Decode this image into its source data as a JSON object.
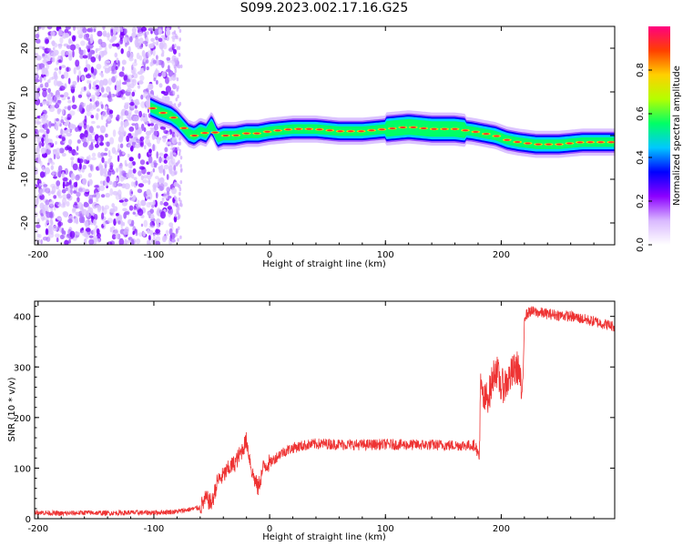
{
  "title": "S099.2023.002.17.16.G25",
  "chart_data": [
    {
      "type": "heatmap",
      "title": "S099.2023.002.17.16.G25",
      "xlabel": "Height of straight line (km)",
      "ylabel": "Frequency (Hz)",
      "xlim": [
        -203,
        298
      ],
      "ylim": [
        -25,
        25
      ],
      "xticks": [
        -200,
        -100,
        0,
        100,
        200
      ],
      "yticks": [
        -20,
        -10,
        0,
        10,
        20
      ],
      "colorbar": {
        "label": "Normalized spectral amplitude",
        "range": [
          0,
          1
        ],
        "ticks": [
          "0.0",
          "0.2",
          "0.4",
          "0.6",
          "0.8"
        ],
        "colormap": [
          "#ffffff",
          "#d9b8ff",
          "#8c00ff",
          "#0000ff",
          "#00c8ff",
          "#00ff66",
          "#b4ff00",
          "#ffd000",
          "#ff4000",
          "#ff0080"
        ]
      },
      "noise_region_km": [
        -203,
        -80
      ],
      "ridge": {
        "x": [
          -103,
          -95,
          -85,
          -80,
          -75,
          -70,
          -65,
          -60,
          -55,
          -50,
          -45,
          -40,
          -30,
          -20,
          -10,
          0,
          20,
          40,
          60,
          80,
          100,
          120,
          140,
          160,
          175,
          185,
          195,
          205,
          215,
          230,
          250,
          270,
          298
        ],
        "y": [
          6.5,
          5.5,
          4.5,
          3.5,
          2.0,
          0.5,
          0,
          1.0,
          0.5,
          2.5,
          -0.5,
          0,
          0,
          0.5,
          0.5,
          1.0,
          1.5,
          1.5,
          1.0,
          1.0,
          1.5,
          2.0,
          1.5,
          1.5,
          1.0,
          0.5,
          0,
          -1.0,
          -1.5,
          -2.0,
          -2.0,
          -1.5,
          -1.5
        ]
      }
    },
    {
      "type": "line",
      "xlabel": "Height of straight line (km)",
      "ylabel": "SNR (10 * v/v)",
      "xlim": [
        -203,
        298
      ],
      "ylim": [
        0,
        430
      ],
      "xticks": [
        -200,
        -100,
        0,
        100,
        200
      ],
      "yticks": [
        0,
        100,
        200,
        300,
        400
      ],
      "color": "#ee3333",
      "x": [
        -203,
        -180,
        -160,
        -140,
        -120,
        -100,
        -80,
        -70,
        -60,
        -55,
        -50,
        -45,
        -40,
        -35,
        -30,
        -25,
        -20,
        -15,
        -10,
        -5,
        0,
        5,
        10,
        20,
        30,
        40,
        50,
        60,
        80,
        100,
        120,
        140,
        160,
        178,
        181,
        182,
        185,
        190,
        195,
        200,
        205,
        210,
        215,
        218,
        219,
        220,
        225,
        240,
        260,
        280,
        298
      ],
      "values": [
        13,
        10,
        12,
        11,
        12,
        12,
        14,
        18,
        22,
        40,
        30,
        75,
        85,
        100,
        110,
        130,
        155,
        90,
        60,
        105,
        110,
        120,
        130,
        140,
        145,
        148,
        148,
        147,
        146,
        147,
        146,
        146,
        145,
        145,
        115,
        260,
        230,
        250,
        300,
        260,
        270,
        290,
        300,
        240,
        290,
        400,
        410,
        405,
        400,
        390,
        380
      ]
    }
  ]
}
